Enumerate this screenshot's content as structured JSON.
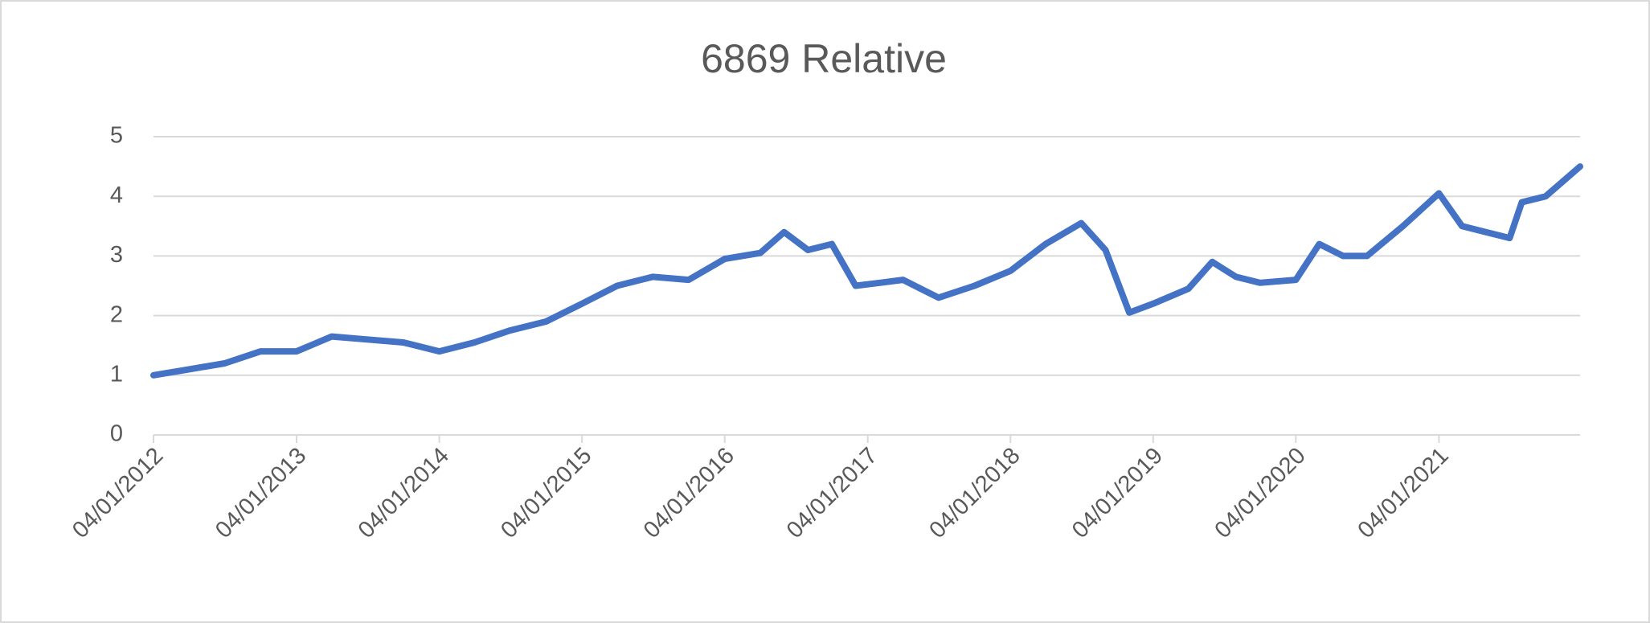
{
  "chart_data": {
    "type": "line",
    "title": "6869 Relative",
    "x": [
      "04/01/2012",
      "04/04/2012",
      "04/07/2012",
      "04/10/2012",
      "04/01/2013",
      "04/04/2013",
      "04/07/2013",
      "04/10/2013",
      "04/01/2014",
      "04/04/2014",
      "04/07/2014",
      "04/10/2014",
      "04/01/2015",
      "04/04/2015",
      "04/07/2015",
      "04/10/2015",
      "04/01/2016",
      "04/04/2016",
      "04/06/2016",
      "04/08/2016",
      "04/10/2016",
      "04/12/2016",
      "04/02/2017",
      "04/04/2017",
      "04/07/2017",
      "04/10/2017",
      "04/01/2018",
      "04/04/2018",
      "04/07/2018",
      "04/09/2018",
      "04/11/2018",
      "04/01/2019",
      "04/04/2019",
      "04/06/2019",
      "04/08/2019",
      "04/10/2019",
      "04/01/2020",
      "04/03/2020",
      "04/05/2020",
      "04/07/2020",
      "04/10/2020",
      "04/01/2021",
      "04/03/2021",
      "04/05/2021",
      "04/07/2021",
      "04/08/2021",
      "04/10/2021",
      "31/12/2021"
    ],
    "series": [
      {
        "name": "6869 Relative",
        "color": "#4472c4",
        "values": [
          1.0,
          1.1,
          1.2,
          1.4,
          1.4,
          1.65,
          1.6,
          1.55,
          1.4,
          1.55,
          1.75,
          1.9,
          2.2,
          2.5,
          2.65,
          2.6,
          2.95,
          3.05,
          3.4,
          3.1,
          3.2,
          2.5,
          2.55,
          2.6,
          2.3,
          2.5,
          2.75,
          3.2,
          3.55,
          3.1,
          2.05,
          2.2,
          2.45,
          2.9,
          2.65,
          2.55,
          2.6,
          3.2,
          3.0,
          3.0,
          3.5,
          4.05,
          3.5,
          3.4,
          3.3,
          3.9,
          4.0,
          4.5
        ]
      }
    ],
    "xlim": [
      "04/01/2012",
      "31/12/2021"
    ],
    "xticks": [
      "04/01/2012",
      "04/01/2013",
      "04/01/2014",
      "04/01/2015",
      "04/01/2016",
      "04/01/2017",
      "04/01/2018",
      "04/01/2019",
      "04/01/2020",
      "04/01/2021"
    ],
    "ylim": [
      0,
      5
    ],
    "yticks": [
      0,
      1,
      2,
      3,
      4,
      5
    ],
    "grid": true
  }
}
